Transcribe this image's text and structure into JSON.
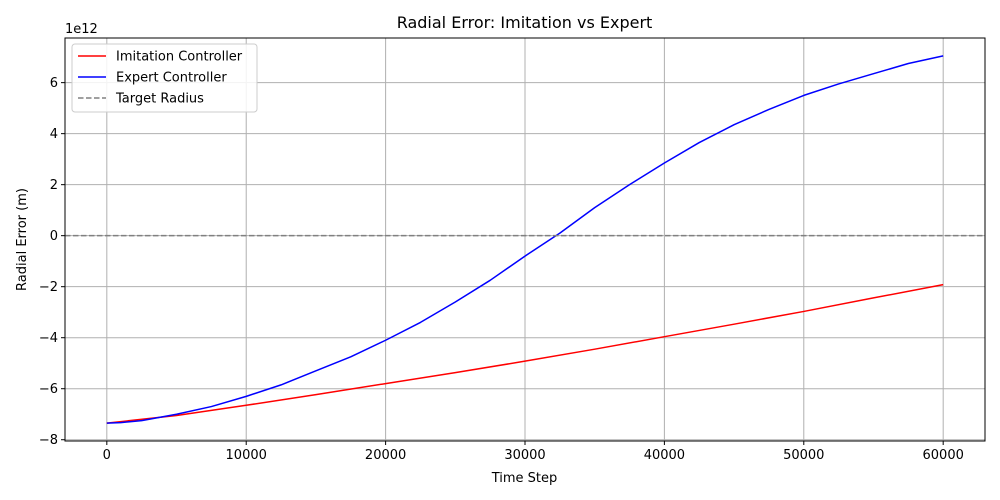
{
  "chart_data": {
    "type": "line",
    "title": "Radial Error: Imitation vs Expert",
    "xlabel": "Time Step",
    "ylabel": "Radial Error (m)",
    "y_offset_text": "1e12",
    "xlim": [
      -3000,
      63000
    ],
    "ylim": [
      -8.05,
      7.75
    ],
    "x_ticks": [
      0,
      10000,
      20000,
      30000,
      40000,
      50000,
      60000
    ],
    "x_tick_labels": [
      "0",
      "10000",
      "20000",
      "30000",
      "40000",
      "50000",
      "60000"
    ],
    "y_ticks": [
      -8,
      -6,
      -4,
      -2,
      0,
      2,
      4,
      6
    ],
    "y_tick_labels": [
      "−8",
      "−6",
      "−4",
      "−2",
      "0",
      "2",
      "4",
      "6"
    ],
    "grid": true,
    "legend_position": "top-left",
    "series": [
      {
        "name": "Imitation Controller",
        "color": "#ff0000",
        "style": "solid",
        "x": [
          0,
          5000,
          10000,
          15000,
          20000,
          25000,
          30000,
          35000,
          40000,
          45000,
          50000,
          55000,
          60000
        ],
        "values": [
          -7.35,
          -7.05,
          -6.65,
          -6.23,
          -5.8,
          -5.37,
          -4.92,
          -4.45,
          -3.96,
          -3.47,
          -2.97,
          -2.44,
          -1.92
        ]
      },
      {
        "name": "Expert Controller",
        "color": "#0000ff",
        "style": "solid",
        "x": [
          0,
          1000,
          2500,
          5000,
          7500,
          10000,
          12500,
          15000,
          17500,
          20000,
          22500,
          25000,
          27500,
          30000,
          32500,
          35000,
          37500,
          40000,
          42500,
          45000,
          47500,
          50000,
          52500,
          55000,
          57500,
          60000
        ],
        "values": [
          -7.35,
          -7.33,
          -7.25,
          -7.0,
          -6.7,
          -6.3,
          -5.85,
          -5.3,
          -4.75,
          -4.1,
          -3.4,
          -2.6,
          -1.75,
          -0.8,
          0.1,
          1.1,
          2.0,
          2.85,
          3.65,
          4.35,
          4.95,
          5.5,
          5.95,
          6.35,
          6.75,
          7.05
        ]
      },
      {
        "name": "Target Radius",
        "color": "#808080",
        "style": "dashed",
        "x": [
          -3000,
          63000
        ],
        "values": [
          0,
          0
        ]
      }
    ]
  }
}
